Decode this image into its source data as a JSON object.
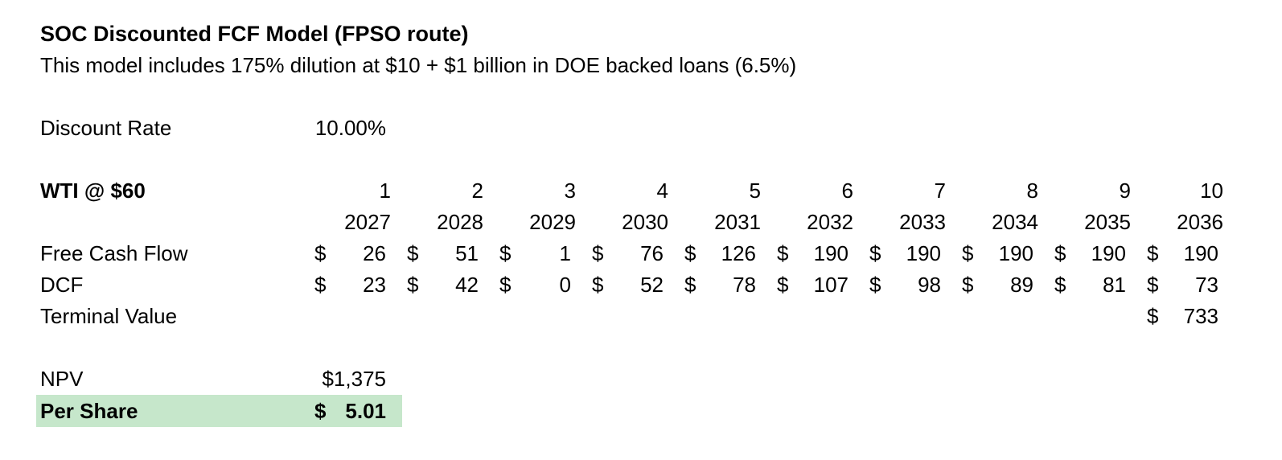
{
  "header": {
    "title": "SOC Discounted FCF Model (FPSO route)",
    "subtitle": "This model includes 175% dilution at $10 + $1 billion in DOE backed loans (6.5%)"
  },
  "inputs": {
    "discount_rate_label": "Discount Rate",
    "discount_rate_value": "10.00%"
  },
  "table": {
    "scenario_label": "WTI @ $60",
    "currency": "$",
    "periods": [
      "1",
      "2",
      "3",
      "4",
      "5",
      "6",
      "7",
      "8",
      "9",
      "10"
    ],
    "years": [
      "2027",
      "2028",
      "2029",
      "2030",
      "2031",
      "2032",
      "2033",
      "2034",
      "2035",
      "2036"
    ],
    "fcf": {
      "label": "Free Cash Flow",
      "values": [
        "26",
        "51",
        "1",
        "76",
        "126",
        "190",
        "190",
        "190",
        "190",
        "190"
      ]
    },
    "dcf": {
      "label": "DCF",
      "values": [
        "23",
        "42",
        "0",
        "52",
        "78",
        "107",
        "98",
        "89",
        "81",
        "73"
      ]
    },
    "terminal": {
      "label": "Terminal Value",
      "value": "733"
    }
  },
  "summary": {
    "npv_label": "NPV",
    "npv_value": "$1,375",
    "per_share_label": "Per Share",
    "per_share_currency": "$",
    "per_share_value": "5.01",
    "highlight_color": "#C6E7CB"
  }
}
